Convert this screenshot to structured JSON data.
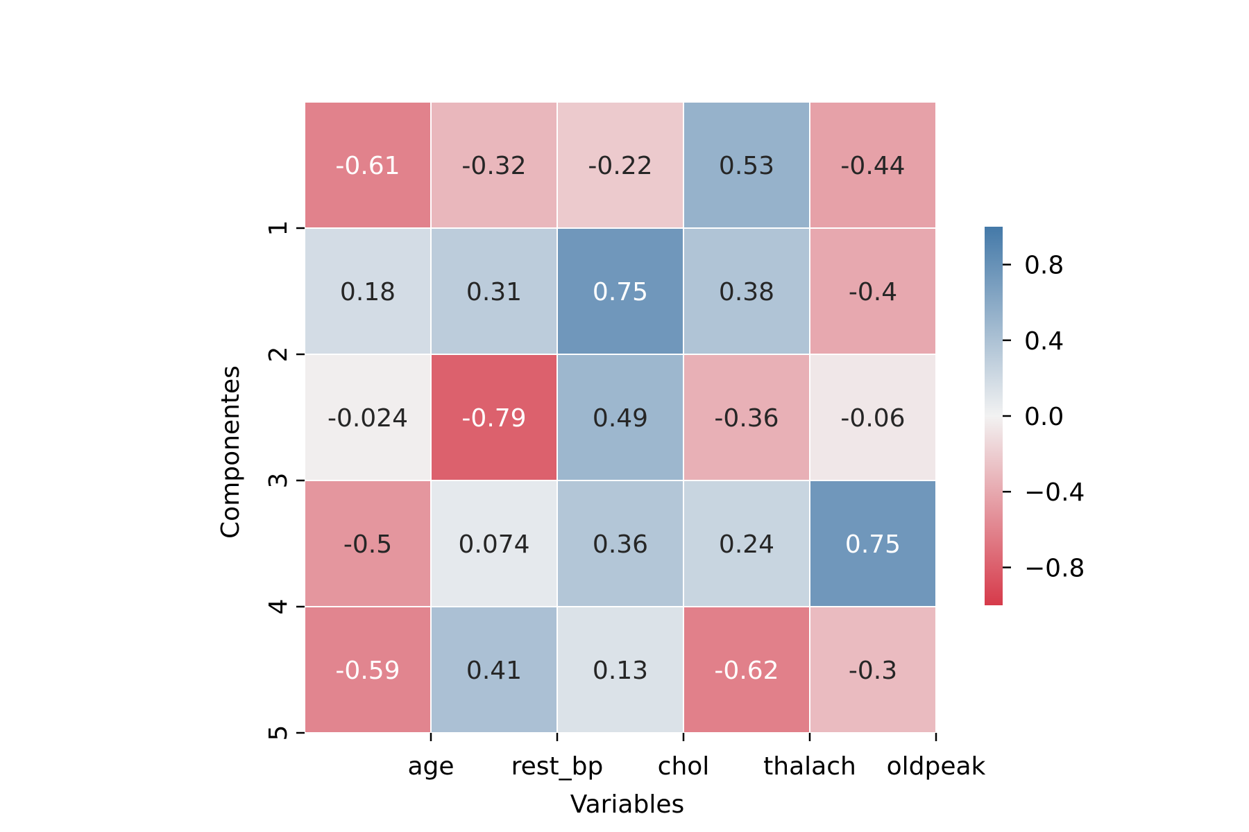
{
  "chart_data": {
    "type": "heatmap",
    "title": "",
    "xlabel": "Variables",
    "ylabel": "Componentes",
    "x_tick_labels": [
      "age",
      "rest_bp",
      "chol",
      "thalach",
      "oldpeak"
    ],
    "y_tick_labels": [
      "1",
      "2",
      "3",
      "4",
      "5"
    ],
    "rows": [
      {
        "values": [
          -0.61,
          -0.32,
          -0.22,
          0.53,
          -0.44
        ],
        "labels": [
          "-0.61",
          "-0.32",
          "-0.22",
          "0.53",
          "-0.44"
        ]
      },
      {
        "values": [
          0.18,
          0.31,
          0.75,
          0.38,
          -0.4
        ],
        "labels": [
          "0.18",
          "0.31",
          "0.75",
          "0.38",
          "-0.4"
        ]
      },
      {
        "values": [
          -0.024,
          -0.79,
          0.49,
          -0.36,
          -0.06
        ],
        "labels": [
          "-0.024",
          "-0.79",
          "0.49",
          "-0.36",
          "-0.06"
        ]
      },
      {
        "values": [
          -0.5,
          0.074,
          0.36,
          0.24,
          0.75
        ],
        "labels": [
          "-0.5",
          "0.074",
          "0.36",
          "0.24",
          "0.75"
        ]
      },
      {
        "values": [
          -0.59,
          0.41,
          0.13,
          -0.62,
          -0.3
        ],
        "labels": [
          "-0.59",
          "0.41",
          "0.13",
          "-0.62",
          "-0.3"
        ]
      }
    ],
    "colorbar": {
      "range": [
        -1,
        1
      ],
      "ticks": [
        0.8,
        0.4,
        0.0,
        -0.4,
        -0.8
      ],
      "tick_labels": [
        "0.8",
        "0.4",
        "0.0",
        "−0.4",
        "−0.8"
      ]
    },
    "colors": {
      "negative": "#d63a4a",
      "center": "#f2f2f2",
      "positive": "#4479a8",
      "text_dark": "#262626",
      "text_light": "#ffffff"
    }
  }
}
